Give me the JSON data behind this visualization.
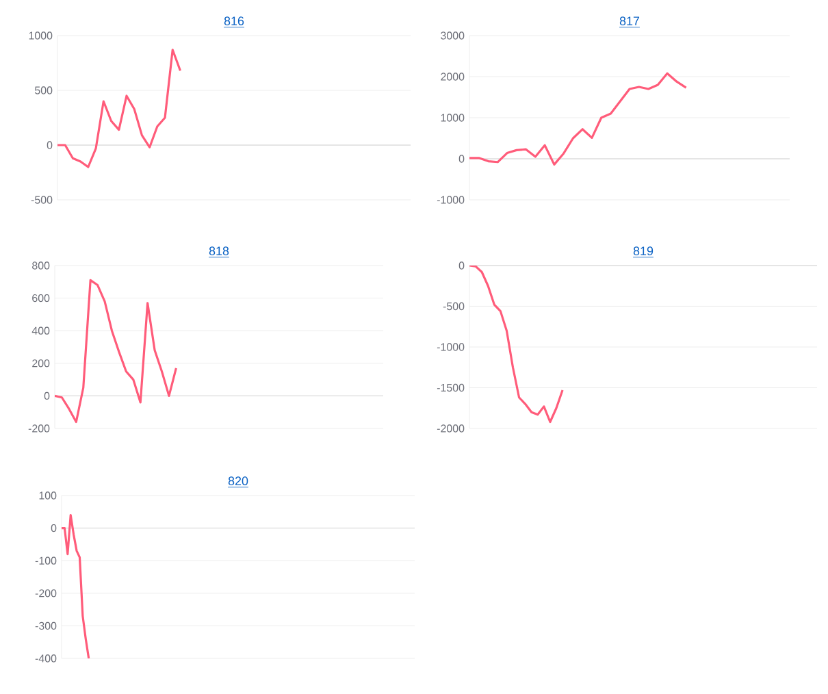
{
  "chart_data": [
    {
      "type": "line",
      "title": "816",
      "color": "#ff5c7a",
      "grid": "y",
      "marker": "none",
      "line_style": "solid",
      "tick_labels": "y",
      "ylim": [
        -500,
        1000
      ],
      "yticks": [
        -500,
        0,
        500,
        1000
      ],
      "categories": [
        null,
        null,
        null,
        null,
        null,
        null,
        null,
        null,
        null,
        null,
        null,
        null,
        null,
        null,
        null,
        null,
        null,
        null,
        null,
        null,
        null,
        null,
        null,
        null,
        null,
        null,
        null,
        null,
        null,
        null,
        null,
        null,
        null,
        null,
        null,
        null,
        null,
        null,
        null,
        null,
        null,
        null,
        null,
        null,
        null,
        null,
        null
      ],
      "values": [
        0,
        0,
        -120,
        -150,
        -200,
        -30,
        400,
        220,
        140,
        450,
        330,
        90,
        -20,
        170,
        250,
        870,
        680,
        null,
        null,
        null,
        null,
        null,
        null,
        null,
        null,
        null,
        null,
        null,
        null,
        null,
        null,
        null,
        null,
        null,
        null,
        null,
        null,
        null,
        null,
        null,
        null,
        null,
        null,
        null,
        null,
        null,
        null
      ]
    },
    {
      "type": "line",
      "title": "817",
      "color": "#ff5c7a",
      "grid": "y",
      "marker": "none",
      "line_style": "solid",
      "tick_labels": "y",
      "ylim": [
        -1000,
        3000
      ],
      "yticks": [
        -1000,
        0,
        1000,
        2000,
        3000
      ],
      "categories": [
        null,
        null,
        null,
        null,
        null,
        null,
        null,
        null,
        null,
        null,
        null,
        null,
        null,
        null,
        null,
        null,
        null,
        null,
        null,
        null,
        null,
        null,
        null,
        null,
        null,
        null,
        null,
        null,
        null,
        null,
        null,
        null,
        null,
        null,
        null
      ],
      "values": [
        20,
        20,
        -60,
        -80,
        140,
        210,
        230,
        50,
        330,
        -140,
        130,
        500,
        720,
        510,
        1000,
        1100,
        1400,
        1700,
        1750,
        1700,
        1800,
        2080,
        1880,
        1730,
        null,
        null,
        null,
        null,
        null,
        null,
        null,
        null,
        null,
        null,
        null
      ]
    },
    {
      "type": "line",
      "title": "818",
      "color": "#ff5c7a",
      "grid": "y",
      "marker": "none",
      "line_style": "solid",
      "tick_labels": "y",
      "ylim": [
        -200,
        800
      ],
      "yticks": [
        -200,
        0,
        200,
        400,
        600,
        800
      ],
      "categories": [
        null,
        null,
        null,
        null,
        null,
        null,
        null,
        null,
        null,
        null,
        null,
        null,
        null,
        null,
        null,
        null,
        null,
        null,
        null,
        null,
        null,
        null,
        null,
        null,
        null,
        null,
        null,
        null,
        null,
        null,
        null,
        null,
        null,
        null,
        null,
        null,
        null,
        null,
        null,
        null,
        null,
        null,
        null,
        null,
        null,
        null,
        null
      ],
      "values": [
        0,
        -10,
        -80,
        -160,
        50,
        710,
        680,
        580,
        400,
        270,
        150,
        100,
        -40,
        570,
        280,
        150,
        0,
        170,
        null,
        null,
        null,
        null,
        null,
        null,
        null,
        null,
        null,
        null,
        null,
        null,
        null,
        null,
        null,
        null,
        null,
        null,
        null,
        null,
        null,
        null,
        null,
        null,
        null,
        null,
        null,
        null,
        null
      ]
    },
    {
      "type": "line",
      "title": "819",
      "color": "#ff5c7a",
      "grid": "y",
      "marker": "none",
      "line_style": "solid",
      "tick_labels": "y",
      "ylim": [
        -2000,
        0
      ],
      "yticks": [
        -2000,
        -1500,
        -1000,
        -500,
        0
      ],
      "categories": [
        null,
        null,
        null,
        null,
        null,
        null,
        null,
        null,
        null,
        null,
        null,
        null,
        null,
        null,
        null,
        null,
        null,
        null,
        null,
        null,
        null,
        null,
        null,
        null,
        null,
        null,
        null,
        null,
        null,
        null,
        null,
        null,
        null,
        null,
        null,
        null,
        null,
        null,
        null,
        null,
        null,
        null,
        null,
        null,
        null,
        null,
        null,
        null,
        null,
        null,
        null,
        null,
        null,
        null,
        null,
        null,
        null
      ],
      "values": [
        0,
        -10,
        -80,
        -250,
        -480,
        -560,
        -800,
        -1250,
        -1620,
        -1700,
        -1800,
        -1830,
        -1730,
        -1920,
        -1750,
        -1530,
        null,
        null,
        null,
        null,
        null,
        null,
        null,
        null,
        null,
        null,
        null,
        null,
        null,
        null,
        null,
        null,
        null,
        null,
        null,
        null,
        null,
        null,
        null,
        null,
        null,
        null,
        null,
        null,
        null,
        null,
        null,
        null,
        null,
        null,
        null,
        null,
        null,
        null,
        null,
        null,
        null
      ]
    },
    {
      "type": "line",
      "title": "820",
      "color": "#ff5c7a",
      "grid": "y",
      "marker": "none",
      "line_style": "solid",
      "tick_labels": "y",
      "ylim": [
        -400,
        100
      ],
      "yticks": [
        -400,
        -300,
        -200,
        -100,
        0,
        100
      ],
      "categories": [
        null,
        null,
        null,
        null,
        null,
        null,
        null,
        null,
        null,
        null,
        null,
        null,
        null,
        null,
        null,
        null,
        null,
        null,
        null,
        null,
        null,
        null,
        null,
        null,
        null,
        null,
        null,
        null,
        null,
        null,
        null,
        null,
        null,
        null,
        null,
        null,
        null,
        null,
        null,
        null,
        null,
        null,
        null,
        null,
        null,
        null,
        null,
        null,
        null,
        null,
        null,
        null,
        null,
        null,
        null,
        null,
        null,
        null,
        null,
        null,
        null,
        null,
        null,
        null,
        null,
        null,
        null,
        null,
        null,
        null,
        null,
        null,
        null,
        null,
        null,
        null,
        null,
        null,
        null,
        null,
        null,
        null,
        null,
        null,
        null,
        null,
        null,
        null,
        null,
        null,
        null,
        null,
        null,
        null,
        null,
        null,
        null,
        null,
        null,
        null,
        null,
        null,
        null,
        null,
        null,
        null,
        null,
        null,
        null,
        null,
        null,
        null,
        null,
        null,
        null,
        null,
        null,
        null
      ],
      "values": [
        0,
        0,
        -80,
        40,
        -20,
        -70,
        -90,
        -270,
        -340,
        -400,
        null,
        null,
        null,
        null,
        null,
        null,
        null,
        null,
        null,
        null,
        null,
        null,
        null,
        null,
        null,
        null,
        null,
        null,
        null,
        null,
        null,
        null,
        null,
        null,
        null,
        null,
        null,
        null,
        null,
        null,
        null,
        null,
        null,
        null,
        null,
        null,
        null,
        null,
        null,
        null,
        null,
        null,
        null,
        null,
        null,
        null,
        null,
        null,
        null,
        null,
        null,
        null,
        null,
        null,
        null,
        null,
        null,
        null,
        null,
        null,
        null,
        null,
        null,
        null,
        null,
        null,
        null,
        null,
        null,
        null,
        null,
        null,
        null,
        null,
        null,
        null,
        null,
        null,
        null,
        null,
        null,
        null,
        null,
        null,
        null,
        null,
        null,
        null,
        null,
        null,
        null,
        null,
        null,
        null,
        null,
        null,
        null,
        null,
        null,
        null,
        null,
        null,
        null,
        null,
        null,
        null,
        null,
        null
      ]
    }
  ]
}
